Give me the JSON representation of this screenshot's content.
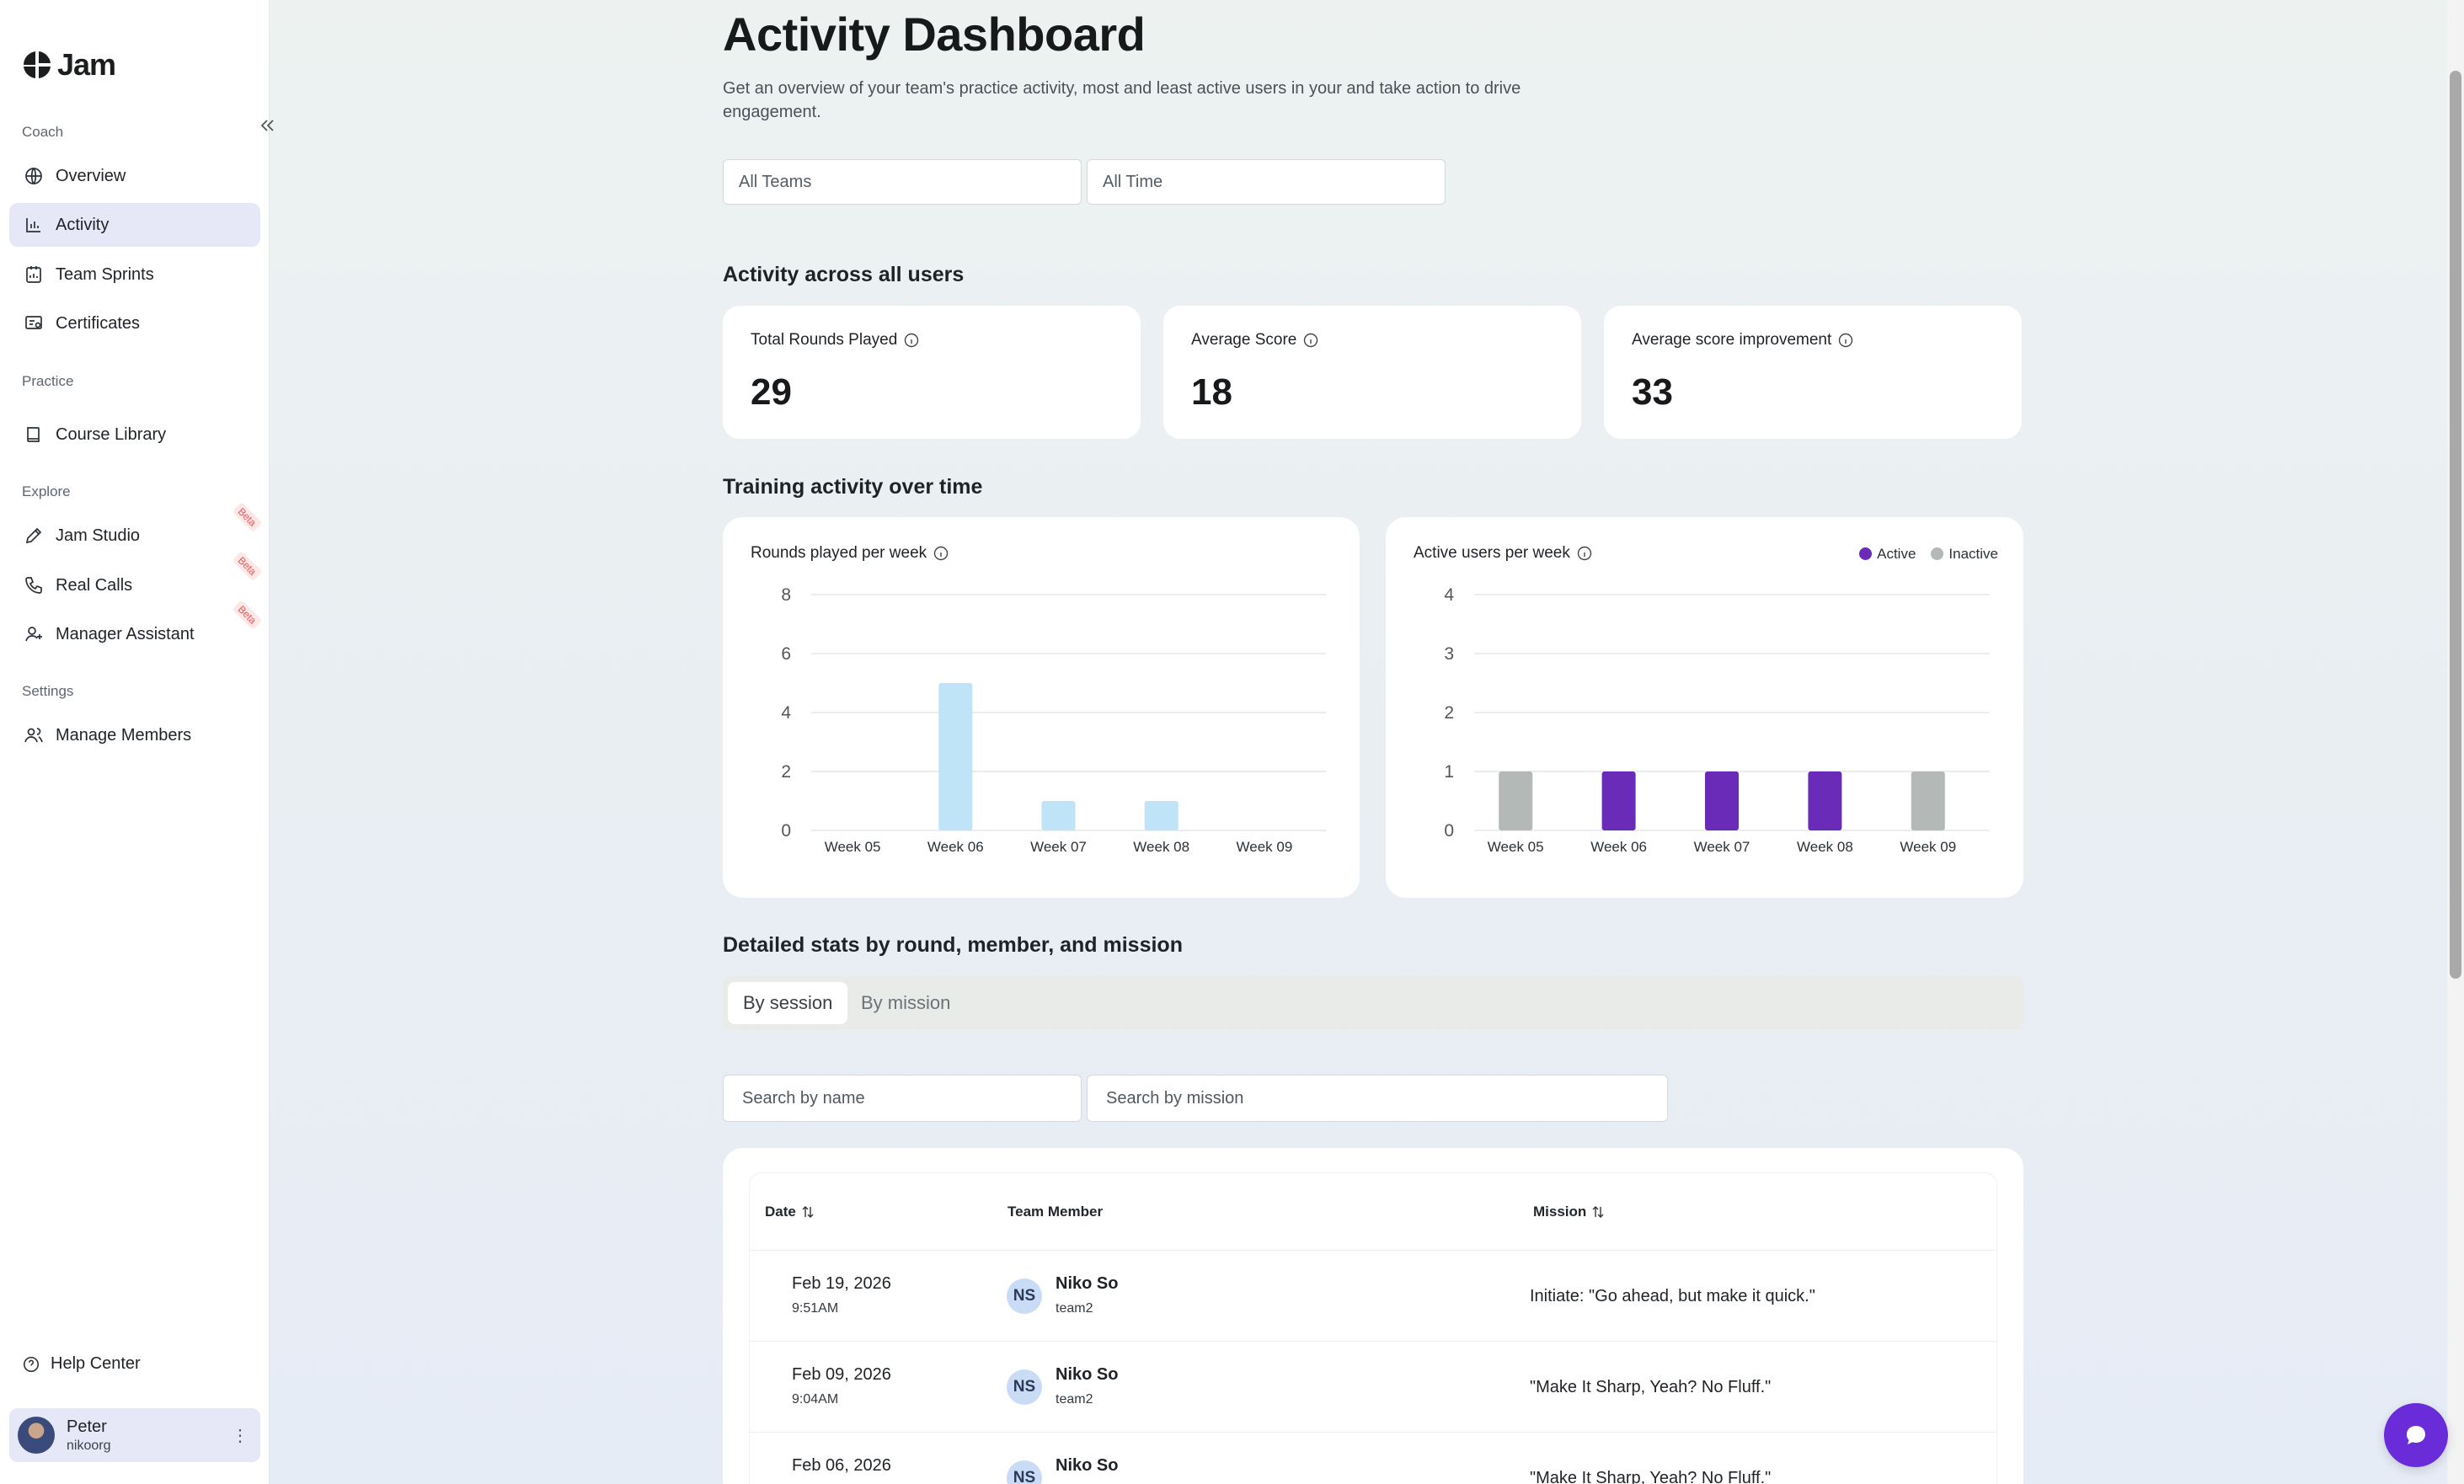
{
  "brand": {
    "name": "Jam"
  },
  "sidebar": {
    "sections": [
      {
        "label": "Coach",
        "items": [
          {
            "label": "Overview",
            "icon": "globe-icon"
          },
          {
            "label": "Activity",
            "icon": "bar-chart-icon",
            "active": true
          },
          {
            "label": "Team Sprints",
            "icon": "sprint-icon"
          },
          {
            "label": "Certificates",
            "icon": "certificate-icon"
          }
        ]
      },
      {
        "label": "Practice",
        "items": [
          {
            "label": "Course Library",
            "icon": "book-icon"
          }
        ]
      },
      {
        "label": "Explore",
        "items": [
          {
            "label": "Jam Studio",
            "icon": "pencil-icon",
            "badge": "Beta"
          },
          {
            "label": "Real Calls",
            "icon": "phone-icon",
            "badge": "Beta"
          },
          {
            "label": "Manager Assistant",
            "icon": "user-plus-icon",
            "badge": "Beta"
          }
        ]
      },
      {
        "label": "Settings",
        "items": [
          {
            "label": "Manage Members",
            "icon": "users-icon"
          }
        ]
      }
    ],
    "help": "Help Center",
    "user": {
      "name": "Peter",
      "org": "nikoorg"
    }
  },
  "page": {
    "title": "Activity Dashboard",
    "description": "Get an overview of your team's practice activity, most and least active users in your and take action to drive engagement.",
    "filters": {
      "team": "All Teams",
      "time": "All Time"
    }
  },
  "activity": {
    "heading": "Activity across all users",
    "stats": [
      {
        "label": "Total Rounds Played",
        "value": "29"
      },
      {
        "label": "Average Score",
        "value": "18"
      },
      {
        "label": "Average score improvement",
        "value": "33"
      }
    ]
  },
  "training": {
    "heading": "Training activity over time"
  },
  "chart_data": [
    {
      "type": "bar",
      "title": "Rounds played per week",
      "categories": [
        "Week 05",
        "Week 06",
        "Week 07",
        "Week 08",
        "Week 09"
      ],
      "values": [
        0,
        5,
        1,
        1,
        0
      ],
      "ylim": [
        0,
        8
      ],
      "yticks": [
        "0",
        "2",
        "4",
        "6",
        "8"
      ],
      "color": "#bfe3f7",
      "grid": true
    },
    {
      "type": "bar",
      "title": "Active users per week",
      "categories": [
        "Week 05",
        "Week 06",
        "Week 07",
        "Week 08",
        "Week 09"
      ],
      "values": [
        1,
        1,
        1,
        1,
        1
      ],
      "status": [
        "Inactive",
        "Active",
        "Active",
        "Active",
        "Inactive"
      ],
      "ylim": [
        0,
        4
      ],
      "yticks": [
        "0",
        "1",
        "2",
        "3",
        "4"
      ],
      "legend": [
        {
          "name": "Active",
          "color": "#6a2bb8"
        },
        {
          "name": "Inactive",
          "color": "#b4b8b7"
        }
      ],
      "legend_position": "top-right",
      "grid": true
    }
  ],
  "details": {
    "heading": "Detailed stats by round, member, and mission",
    "tabs": [
      "By session",
      "By mission"
    ],
    "search_name_placeholder": "Search by name",
    "search_mission_placeholder": "Search by mission",
    "columns": [
      "Date",
      "Team Member",
      "Mission"
    ],
    "rows": [
      {
        "date": "Feb 19, 2026",
        "time": "9:51AM",
        "initials": "NS",
        "member": "Niko So",
        "team": "team2",
        "mission": "Initiate: \"Go ahead, but make it quick.\""
      },
      {
        "date": "Feb 09, 2026",
        "time": "9:04AM",
        "initials": "NS",
        "member": "Niko So",
        "team": "team2",
        "mission": "\"Make It Sharp, Yeah? No Fluff.\""
      },
      {
        "date": "Feb 06, 2026",
        "time": "",
        "initials": "NS",
        "member": "Niko So",
        "team": "",
        "mission": "\"Make It Sharp, Yeah? No Fluff.\""
      }
    ]
  },
  "colors": {
    "accent": "#6a2bd9",
    "active_nav": "#e6e8f7"
  }
}
